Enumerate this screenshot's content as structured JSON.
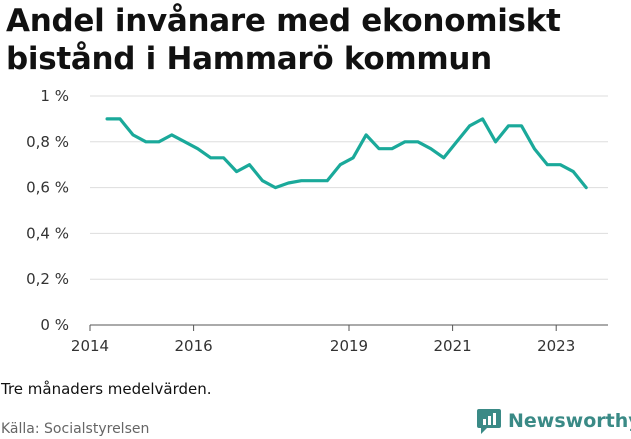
{
  "title": "Andel invånare med ekonomiskt bistånd i Hammarö kommun",
  "note": "Tre månaders medelvärden.",
  "source": "Källa: Socialstyrelsen",
  "brand": "Newsworthy",
  "colors": {
    "line": "#1aa99a",
    "grid": "#dddddd",
    "brand": "#3a8a86"
  },
  "chart_data": {
    "type": "line",
    "title": "Andel invånare med ekonomiskt bistånd i Hammarö kommun",
    "xlabel": "",
    "ylabel": "",
    "ylim": [
      0,
      1
    ],
    "xlim": [
      2014.0,
      2024.0
    ],
    "y_ticks": [
      0,
      0.2,
      0.4,
      0.6,
      0.8,
      1
    ],
    "y_tick_labels": [
      "0 %",
      "0,2 %",
      "0,4 %",
      "0,6 %",
      "0,8 %",
      "1 %"
    ],
    "x_ticks": [
      2014,
      2016,
      2019,
      2021,
      2023
    ],
    "x_tick_labels": [
      "2014",
      "2016",
      "2019",
      "2021",
      "2023"
    ],
    "grid": true,
    "series": [
      {
        "x": [
          2014.33,
          2014.58,
          2014.83,
          2015.08,
          2015.33,
          2015.58,
          2015.83,
          2016.08,
          2016.33,
          2016.58,
          2016.83,
          2017.08,
          2017.33,
          2017.58,
          2017.83,
          2018.08,
          2018.33,
          2018.58,
          2018.83,
          2019.08,
          2019.33,
          2019.58,
          2019.83,
          2020.08,
          2020.33,
          2020.58,
          2020.83,
          2021.08,
          2021.33,
          2021.58,
          2021.83,
          2022.08,
          2022.33,
          2022.58,
          2022.83,
          2023.08,
          2023.33,
          2023.58
        ],
        "y": [
          0.9,
          0.9,
          0.83,
          0.8,
          0.8,
          0.83,
          0.8,
          0.77,
          0.73,
          0.73,
          0.67,
          0.7,
          0.63,
          0.6,
          0.62,
          0.63,
          0.63,
          0.63,
          0.7,
          0.73,
          0.83,
          0.77,
          0.77,
          0.8,
          0.8,
          0.77,
          0.73,
          0.8,
          0.87,
          0.9,
          0.8,
          0.87,
          0.87,
          0.77,
          0.7,
          0.7,
          0.67,
          0.6
        ]
      }
    ]
  }
}
